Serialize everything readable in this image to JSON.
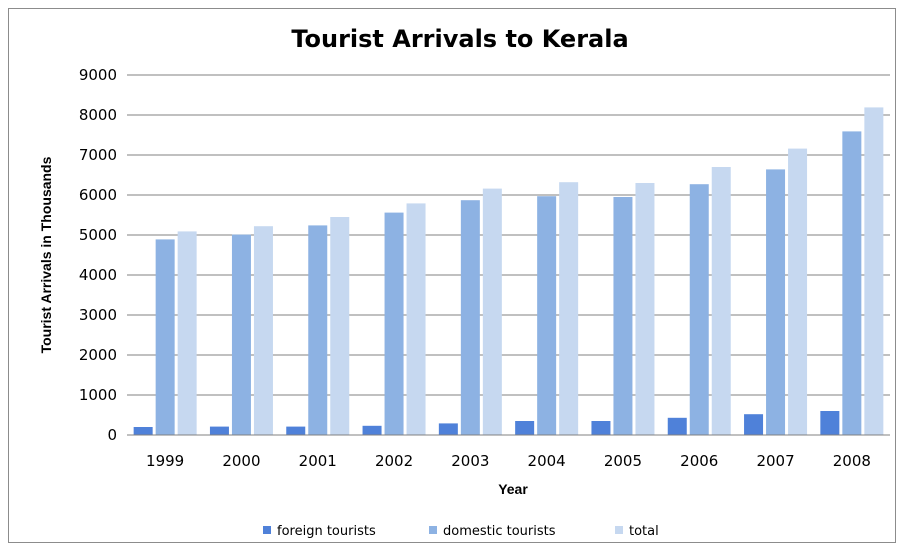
{
  "chart_data": {
    "type": "bar",
    "title": "Tourist Arrivals to Kerala",
    "xlabel": "Year",
    "ylabel": "Tourist Arrivals in Thousands",
    "categories": [
      "1999",
      "2000",
      "2001",
      "2002",
      "2003",
      "2004",
      "2005",
      "2006",
      "2007",
      "2008"
    ],
    "series": [
      {
        "name": "foreign tourists",
        "color": "#4f81d9",
        "values": [
          200,
          210,
          210,
          230,
          290,
          350,
          350,
          430,
          520,
          600
        ]
      },
      {
        "name": "domestic tourists",
        "color": "#8db2e3",
        "values": [
          4890,
          5010,
          5240,
          5560,
          5870,
          5970,
          5950,
          6270,
          6640,
          7590
        ]
      },
      {
        "name": "total",
        "color": "#c6d8f0",
        "values": [
          5090,
          5220,
          5450,
          5790,
          6160,
          6320,
          6300,
          6700,
          7160,
          8190
        ]
      }
    ],
    "yticks": [
      "0",
      "1000",
      "2000",
      "3000",
      "4000",
      "5000",
      "6000",
      "7000",
      "8000",
      "9000"
    ],
    "ylim": [
      0,
      9000
    ],
    "grid": true,
    "legend": "bottom"
  }
}
